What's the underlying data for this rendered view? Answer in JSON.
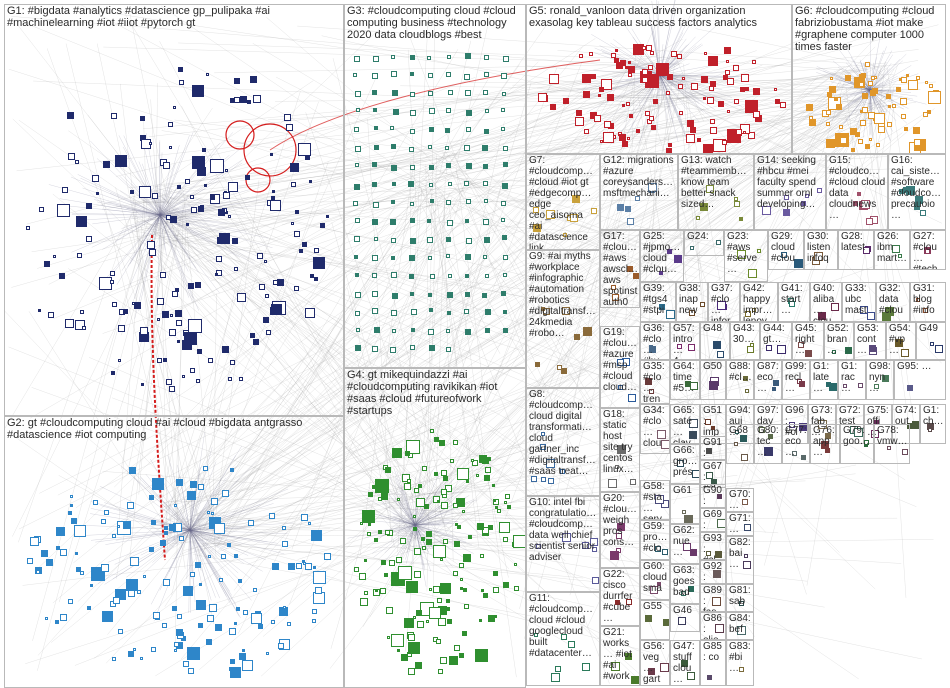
{
  "colors": {
    "G1": "#1f2a6b",
    "G2": "#2e86c9",
    "G3": "#2e7d6b",
    "G4": "#2f8f2f",
    "G5": "#c0202a",
    "G6": "#e0962a",
    "edge": "#9a9a9a",
    "box": "#b9b9b9",
    "bridge": "#d41c1c"
  },
  "groups": [
    {
      "id": "G1",
      "label": "G1: #bigdata #analytics #datascience gp_pulipaka #ai #machinelearning #iot #iiot #pytorch gt"
    },
    {
      "id": "G2",
      "label": "G2: gt #cloudcomputing cloud #ai #cloud #bigdata antgrasso #datascience #iot computing"
    },
    {
      "id": "G3",
      "label": "G3: #cloudcomputing cloud #cloud computing business #technology 2020 data cloudblogs #best"
    },
    {
      "id": "G4",
      "label": "G4: gt mikequindazzi #ai #cloudcomputing ravikikan #iot #saas #cloud #futureofwork #startups"
    },
    {
      "id": "G5",
      "label": "G5: ronald_vanloon data driven organization exasolag key tableau success factors analytics"
    },
    {
      "id": "G6",
      "label": "G6: #cloudcomputing #cloud fabriziobustama #iot make #graphene computer 1000 times faster"
    },
    {
      "id": "G7",
      "label": "G7: #cloudcomp… #cloud #iot gt #edgecomp… edge ceo_aisoma #ai #datascience link"
    },
    {
      "id": "G8",
      "label": "G8: #cloudcomp… cloud digital transformati… cloud gartner_inc #digitaltransf… #saas treat…"
    },
    {
      "id": "G9",
      "label": "G9: #ai myths #workplace #infographic #automation #robotics #digitaltransf… 24kmedia #robo…"
    },
    {
      "id": "G10",
      "label": "G10: intel fbi congratulatio… #cloudcomp… data well chief scientist senior adviser"
    },
    {
      "id": "G11",
      "label": "G11: #cloudcomp… cloud #cloud googlecloud built #datacenter…"
    },
    {
      "id": "G12",
      "label": "G12: migrations #azure coreysanders… msftmechani…"
    },
    {
      "id": "G13",
      "label": "G13: watch #teammemb… know team better snack sized…"
    },
    {
      "id": "G14",
      "label": "G14: seeking #hbcu #mei faculty spend summer ornl developing…"
    },
    {
      "id": "G15",
      "label": "G15: #cloudco… #cloud cloud data cloudnews…"
    },
    {
      "id": "G16",
      "label": "G16: cai_siste… #software #cloudco… precauoio…"
    },
    {
      "id": "G17",
      "label": "G17: #clou… #aws awscl… aws spotinst auth0"
    },
    {
      "id": "G18",
      "label": "G18: static host site try centos linux…"
    },
    {
      "id": "G19",
      "label": "G19: #clou… #azure #msp #cloud cloud…"
    },
    {
      "id": "G20",
      "label": "G20: #clou… weigh pros cons…"
    },
    {
      "id": "G21",
      "label": "G21: works… #iot #ai #work…"
    },
    {
      "id": "G22",
      "label": "G22: cisco durrfer #cube…"
    },
    {
      "id": "G23",
      "label": "G23: #aws #serve…"
    },
    {
      "id": "G24",
      "label": "G24:"
    },
    {
      "id": "G25",
      "label": "G25: #jpmo… cloud #clou…"
    },
    {
      "id": "G26",
      "label": "G26: ibm mart…"
    },
    {
      "id": "G27",
      "label": "G27: #clou… #tech…"
    },
    {
      "id": "G28",
      "label": "G28: latest"
    },
    {
      "id": "G29",
      "label": "G29: cloud #clou…"
    },
    {
      "id": "G30",
      "label": "G30: listen infoq…"
    },
    {
      "id": "G31",
      "label": "G31: blog #info…"
    },
    {
      "id": "G32",
      "label": "G32: data #clou…"
    },
    {
      "id": "G33",
      "label": "G33: ubc mast…"
    },
    {
      "id": "G34",
      "label": "G34: #clo… clou…"
    },
    {
      "id": "G35",
      "label": "G35: #clo… tren…"
    },
    {
      "id": "G36",
      "label": "G36: #clo… #hy…"
    },
    {
      "id": "G37",
      "label": "G37: #clo… infor…"
    },
    {
      "id": "G38",
      "label": "G38: inap new…"
    },
    {
      "id": "G39",
      "label": "G39: #tgs4 #stpi…"
    },
    {
      "id": "G40",
      "label": "G40: aliba… clou…"
    },
    {
      "id": "G41",
      "label": "G41: start…"
    },
    {
      "id": "G42",
      "label": "G42: happy impr… lenov…"
    },
    {
      "id": "G43",
      "label": "G43: 30…"
    },
    {
      "id": "G44",
      "label": "G44: gt…"
    },
    {
      "id": "G45",
      "label": "G45: right…"
    },
    {
      "id": "G46",
      "label": "G46"
    },
    {
      "id": "G47",
      "label": "G47: stuff clou…"
    },
    {
      "id": "G48",
      "label": "G48"
    },
    {
      "id": "G49",
      "label": "G49"
    },
    {
      "id": "G50",
      "label": "G50"
    },
    {
      "id": "G51",
      "label": "G51: imp… tec…"
    },
    {
      "id": "G52",
      "label": "G52: bran…"
    },
    {
      "id": "G53",
      "label": "G53: cont…"
    },
    {
      "id": "G54",
      "label": "G54: #vp…"
    },
    {
      "id": "G55",
      "label": "G55"
    },
    {
      "id": "G56",
      "label": "G56: veg… gart…"
    },
    {
      "id": "G57",
      "label": "G57: intro… 4…"
    },
    {
      "id": "G58",
      "label": "G58: #sta… serv…"
    },
    {
      "id": "G59",
      "label": "G59: pro… #clo…"
    },
    {
      "id": "G60",
      "label": "G60: cloud sma…"
    },
    {
      "id": "G61",
      "label": "G61"
    },
    {
      "id": "G62",
      "label": "G62: nue…"
    },
    {
      "id": "G63",
      "label": "G63: goes bad…"
    },
    {
      "id": "G64",
      "label": "G64: time #5…"
    },
    {
      "id": "G65",
      "label": "G65: saté… clav…"
    },
    {
      "id": "G66",
      "label": "G66: gro… prés…"
    },
    {
      "id": "G67",
      "label": "G67: #cl…"
    },
    {
      "id": "G68",
      "label": "G68"
    },
    {
      "id": "G69",
      "label": "G69: oan…"
    },
    {
      "id": "G70",
      "label": "G70: …"
    },
    {
      "id": "G71",
      "label": "G71: …"
    },
    {
      "id": "G72",
      "label": "G72: test"
    },
    {
      "id": "G73",
      "label": "G73: fab…"
    },
    {
      "id": "G74",
      "label": "G74: out"
    },
    {
      "id": "G75",
      "label": "G75: offi…"
    },
    {
      "id": "G76",
      "label": "G76: app…"
    },
    {
      "id": "G77",
      "label": "G77: eco…"
    },
    {
      "id": "G78",
      "label": "G78: vmw…"
    },
    {
      "id": "G79",
      "label": "G79: goo…"
    },
    {
      "id": "G80",
      "label": "G80: tec…"
    },
    {
      "id": "G81",
      "label": "G81: sab…"
    },
    {
      "id": "G82",
      "label": "G82: bai…"
    },
    {
      "id": "G83",
      "label": "G83: #bi…"
    },
    {
      "id": "G84",
      "label": "G84: bef…"
    },
    {
      "id": "G85",
      "label": "G85: co"
    },
    {
      "id": "G86",
      "label": "G86: olie…"
    },
    {
      "id": "G87",
      "label": "G87: eco…"
    },
    {
      "id": "G88",
      "label": "G88: #cl…"
    },
    {
      "id": "G89",
      "label": "G89: fas…"
    },
    {
      "id": "G90",
      "label": "G90: #jo…"
    },
    {
      "id": "G91",
      "label": "G91: aw…"
    },
    {
      "id": "G92",
      "label": "G92: uni…"
    },
    {
      "id": "G93",
      "label": "G93: #cl…"
    },
    {
      "id": "G94",
      "label": "G94: auj…"
    },
    {
      "id": "G95",
      "label": "G95: …"
    },
    {
      "id": "G96",
      "label": "G96: #cl…"
    },
    {
      "id": "G97",
      "label": "G97: day"
    },
    {
      "id": "G98",
      "label": "G98: nyn…"
    },
    {
      "id": "G99",
      "label": "G99: recl…"
    },
    {
      "id": "G1x",
      "label": "G1: late…"
    },
    {
      "id": "G1y",
      "label": "G1: rac…"
    },
    {
      "id": "G1z",
      "label": "G1: ch…"
    }
  ]
}
